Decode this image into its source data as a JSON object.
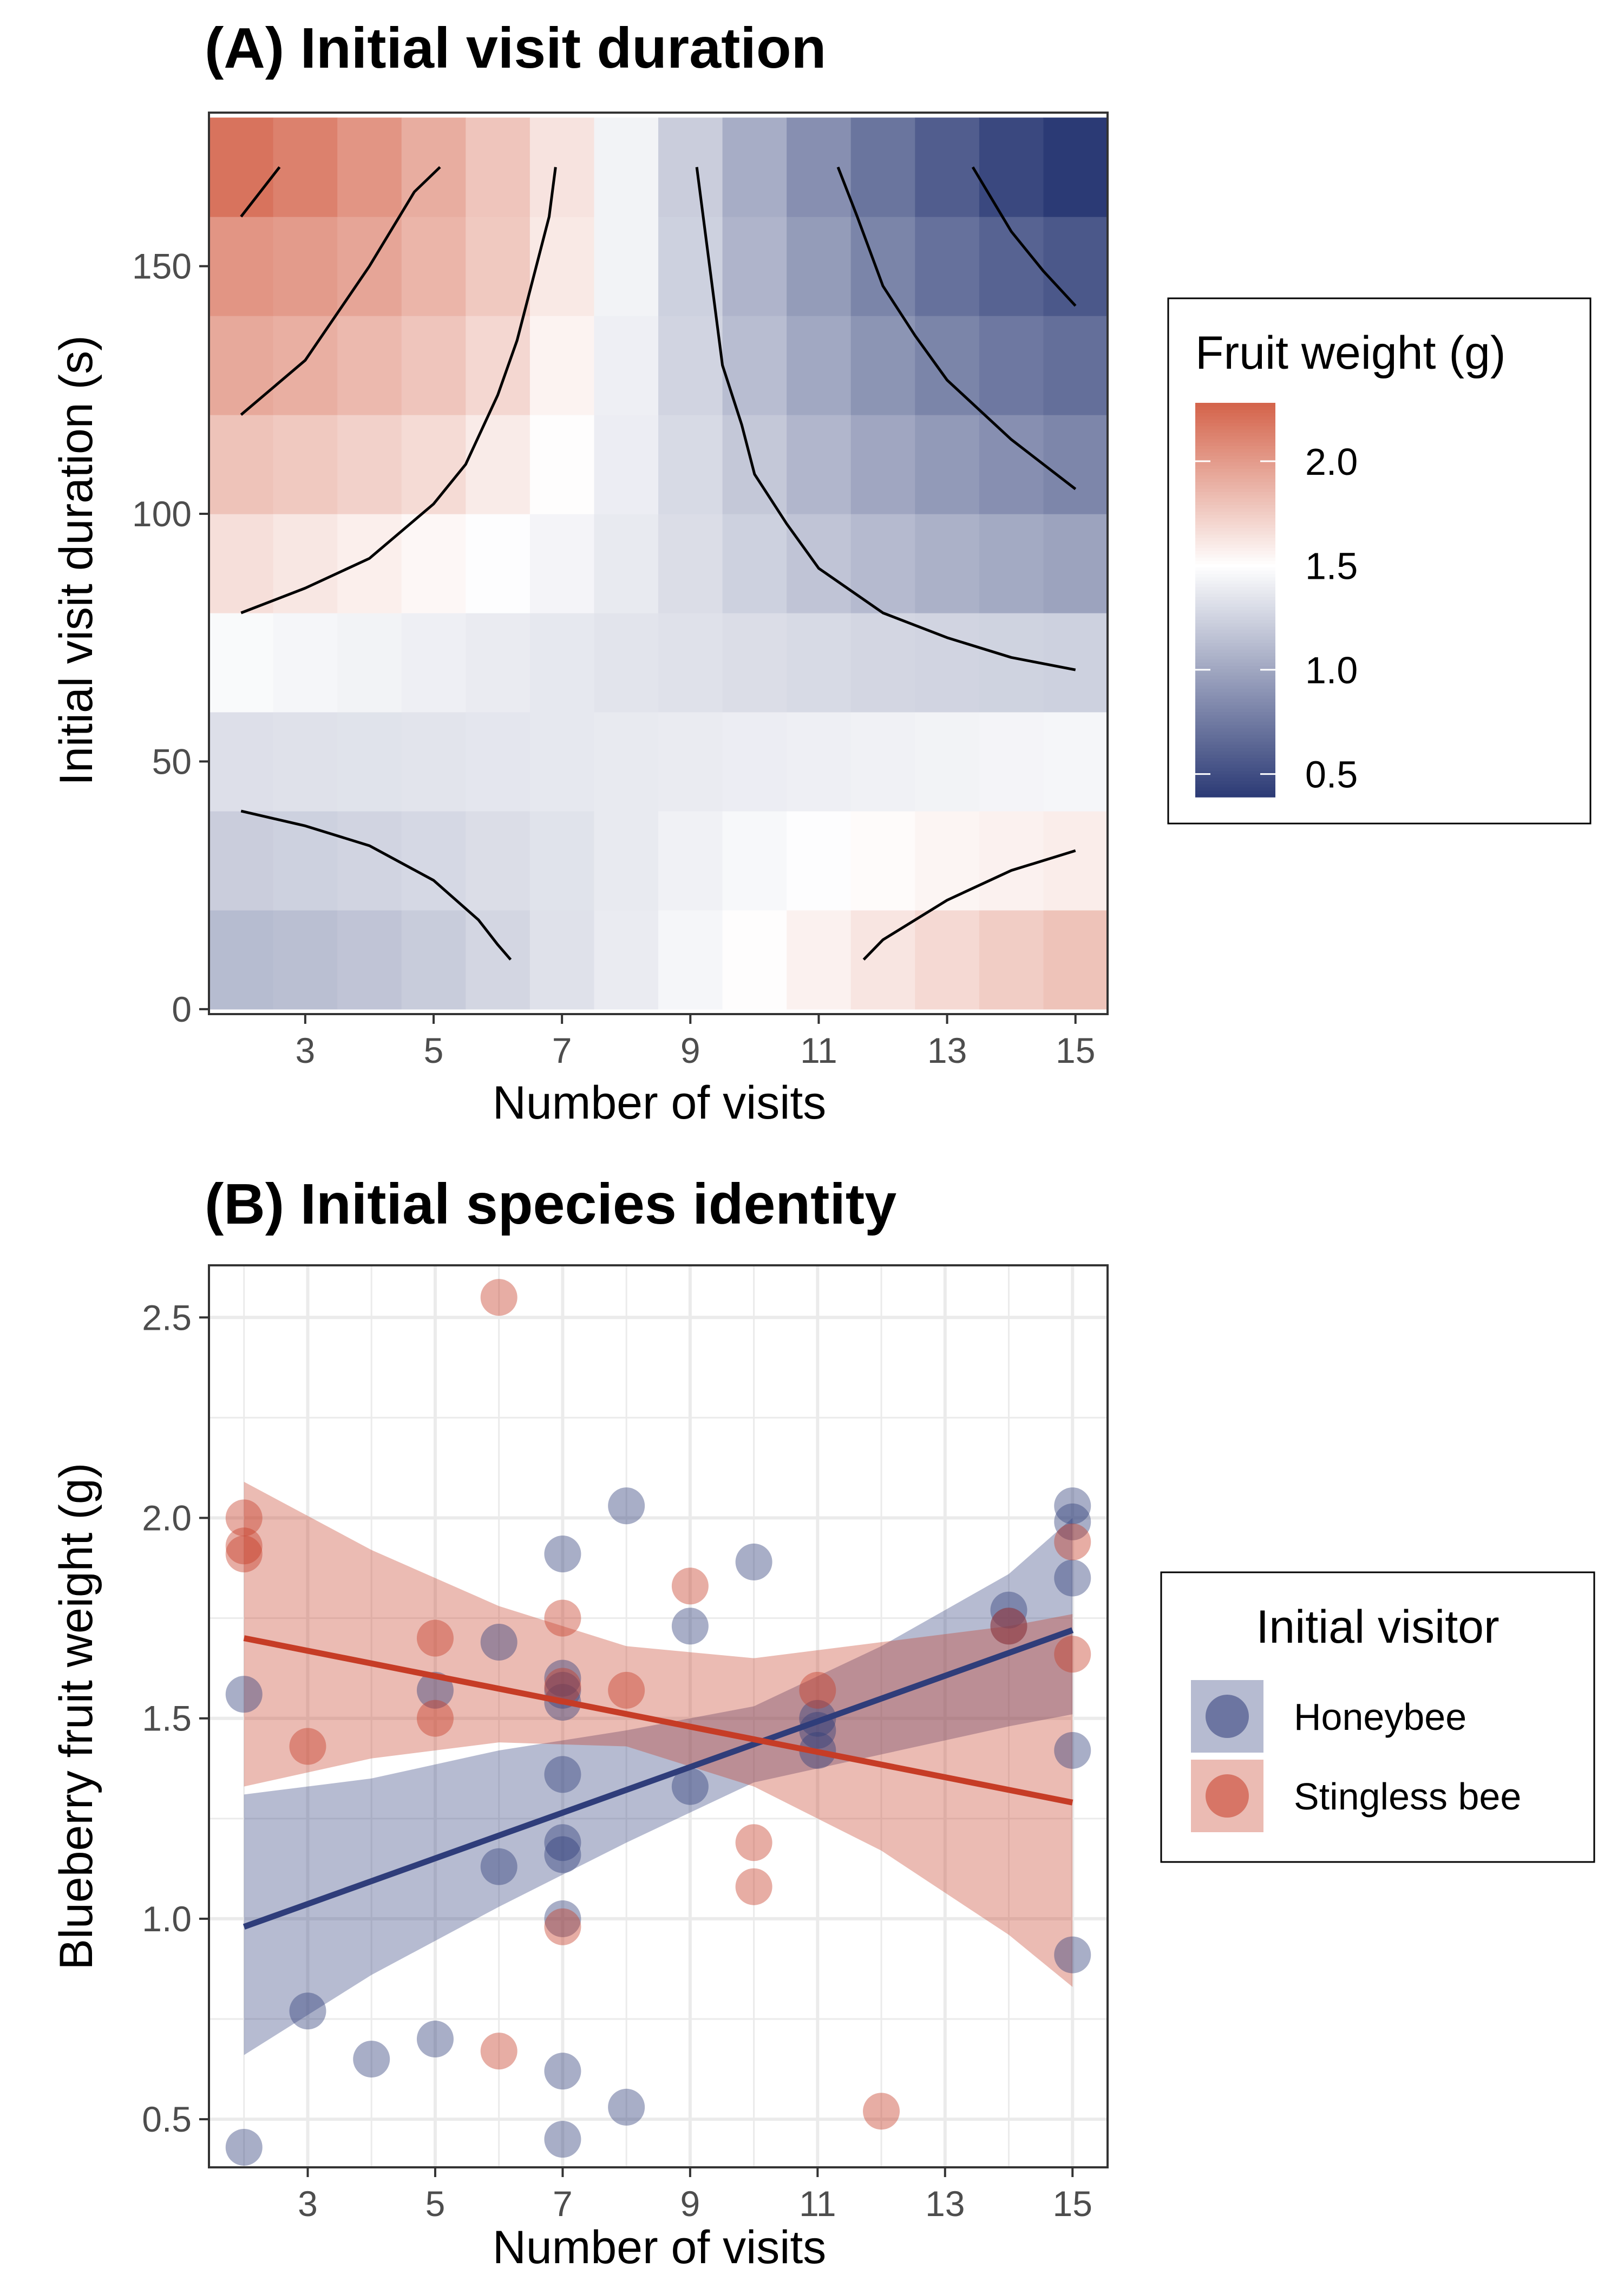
{
  "colors": {
    "low": "#2b3a75",
    "mid": "#ffffff",
    "high": "#d4634a",
    "honeybee": "#2f3d7a",
    "stingless": "#c63c26",
    "grid": "#ebebeb",
    "tick_text": "#4d4d4d"
  },
  "chart_data": [
    {
      "type": "heatmap",
      "title": "(A) Initial visit duration",
      "xlabel": "Number of visits",
      "ylabel": "Initial visit duration (s)",
      "xlim": [
        1.5,
        15.5
      ],
      "ylim": [
        -1,
        181
      ],
      "x_ticks": [
        3,
        5,
        7,
        9,
        11,
        13,
        15
      ],
      "y_ticks": [
        0,
        50,
        100,
        150
      ],
      "x": [
        2,
        3,
        4,
        5,
        6,
        7,
        8,
        9,
        10,
        11,
        12,
        13,
        14,
        15
      ],
      "y": [
        10,
        30,
        50,
        70,
        90,
        110,
        130,
        150,
        170
      ],
      "z": [
        [
          1.12,
          1.14,
          1.17,
          1.21,
          1.27,
          1.33,
          1.39,
          1.45,
          1.51,
          1.57,
          1.63,
          1.69,
          1.75,
          1.8
        ],
        [
          1.22,
          1.24,
          1.26,
          1.28,
          1.31,
          1.34,
          1.38,
          1.42,
          1.46,
          1.49,
          1.52,
          1.55,
          1.57,
          1.59
        ],
        [
          1.32,
          1.33,
          1.34,
          1.35,
          1.36,
          1.37,
          1.38,
          1.39,
          1.4,
          1.41,
          1.42,
          1.43,
          1.44,
          1.45
        ],
        [
          1.47,
          1.45,
          1.43,
          1.41,
          1.39,
          1.37,
          1.35,
          1.33,
          1.31,
          1.29,
          1.27,
          1.26,
          1.25,
          1.24
        ],
        [
          1.66,
          1.62,
          1.58,
          1.54,
          1.49,
          1.44,
          1.38,
          1.31,
          1.24,
          1.17,
          1.11,
          1.06,
          1.02,
          0.98
        ],
        [
          1.8,
          1.77,
          1.73,
          1.68,
          1.6,
          1.51,
          1.4,
          1.29,
          1.19,
          1.09,
          1.0,
          0.93,
          0.87,
          0.82
        ],
        [
          1.93,
          1.9,
          1.85,
          1.79,
          1.7,
          1.56,
          1.41,
          1.26,
          1.13,
          1.01,
          0.9,
          0.81,
          0.74,
          0.69
        ],
        [
          2.03,
          2.0,
          1.95,
          1.87,
          1.77,
          1.61,
          1.43,
          1.24,
          1.08,
          0.94,
          0.81,
          0.7,
          0.62,
          0.56
        ],
        [
          2.2,
          2.13,
          2.03,
          1.91,
          1.79,
          1.64,
          1.43,
          1.22,
          1.04,
          0.87,
          0.72,
          0.59,
          0.47,
          0.39
        ]
      ],
      "legend": {
        "title": "Fruit weight (g)",
        "ticks": [
          0.5,
          1.0,
          1.5,
          2.0
        ],
        "tick_labels": [
          "0.5",
          "1.0",
          "1.5",
          "2.0"
        ],
        "range": [
          0.39,
          2.28
        ],
        "placement": "right"
      },
      "contours": [
        [
          [
            2,
            160
          ],
          [
            2.6,
            170
          ]
        ],
        [
          [
            2,
            120
          ],
          [
            3,
            131
          ],
          [
            4,
            150
          ],
          [
            4.7,
            165
          ],
          [
            5.1,
            170
          ]
        ],
        [
          [
            2,
            80
          ],
          [
            3,
            85
          ],
          [
            4,
            91
          ],
          [
            5,
            102
          ],
          [
            5.5,
            110
          ],
          [
            6,
            124
          ],
          [
            6.3,
            135
          ],
          [
            6.6,
            150
          ],
          [
            6.8,
            160
          ],
          [
            6.9,
            170
          ]
        ],
        [
          [
            9.1,
            170
          ],
          [
            9.2,
            160
          ],
          [
            9.3,
            150
          ],
          [
            9.5,
            130
          ],
          [
            9.8,
            118
          ],
          [
            10,
            108
          ],
          [
            10.5,
            98
          ],
          [
            11,
            89
          ],
          [
            12,
            80
          ],
          [
            13,
            75
          ],
          [
            14,
            71
          ],
          [
            15,
            68.5
          ]
        ],
        [
          [
            11.3,
            170
          ],
          [
            11.6,
            160
          ],
          [
            12,
            146
          ],
          [
            12.5,
            136
          ],
          [
            13,
            127
          ],
          [
            14,
            115
          ],
          [
            15,
            105
          ]
        ],
        [
          [
            13.4,
            170
          ],
          [
            14,
            157
          ],
          [
            14.5,
            149
          ],
          [
            15,
            142
          ]
        ],
        [
          [
            2,
            40
          ],
          [
            3,
            37
          ],
          [
            4,
            33
          ],
          [
            5,
            26
          ],
          [
            5.7,
            18
          ],
          [
            6,
            13
          ],
          [
            6.2,
            10
          ]
        ],
        [
          [
            11.7,
            10
          ],
          [
            12,
            14
          ],
          [
            13,
            22
          ],
          [
            14,
            28
          ],
          [
            15,
            32
          ]
        ]
      ]
    },
    {
      "type": "scatter",
      "title": "(B) Initial species identity",
      "xlabel": "Number of visits",
      "ylabel": "Blueberry fruit weight (g)",
      "xlim": [
        1.45,
        15.55
      ],
      "ylim": [
        0.38,
        2.63
      ],
      "x_ticks": [
        3,
        5,
        7,
        9,
        11,
        13,
        15
      ],
      "y_ticks": [
        0.5,
        1.0,
        1.5,
        2.0,
        2.5
      ],
      "y_tick_labels": [
        "0.5",
        "1.0",
        "1.5",
        "2.0",
        "2.5"
      ],
      "grid": true,
      "legend": {
        "title": "Initial visitor",
        "placement": "right",
        "entries": [
          "Honeybee",
          "Stingless bee"
        ]
      },
      "series": [
        {
          "name": "Honeybee",
          "points": [
            [
              2,
              1.56
            ],
            [
              2,
              0.43
            ],
            [
              3,
              0.77
            ],
            [
              4,
              0.65
            ],
            [
              5,
              1.57
            ],
            [
              5,
              0.7
            ],
            [
              6,
              1.69
            ],
            [
              6,
              1.13
            ],
            [
              7,
              1.91
            ],
            [
              7,
              1.6
            ],
            [
              7,
              1.57
            ],
            [
              7,
              1.54
            ],
            [
              7,
              1.36
            ],
            [
              7,
              1.19
            ],
            [
              7,
              1.16
            ],
            [
              7,
              1.0
            ],
            [
              7,
              0.62
            ],
            [
              7,
              0.45
            ],
            [
              8,
              2.03
            ],
            [
              8,
              0.53
            ],
            [
              9,
              1.73
            ],
            [
              9,
              1.33
            ],
            [
              10,
              1.89
            ],
            [
              11,
              1.5
            ],
            [
              11,
              1.47
            ],
            [
              11,
              1.42
            ],
            [
              14,
              1.77
            ],
            [
              14,
              1.73
            ],
            [
              15,
              2.03
            ],
            [
              15,
              1.99
            ],
            [
              15,
              1.85
            ],
            [
              15,
              1.42
            ],
            [
              15,
              0.91
            ]
          ],
          "fit": [
            [
              2,
              0.98
            ],
            [
              15,
              1.72
            ]
          ],
          "ribbon": [
            [
              2,
              0.66,
              1.31
            ],
            [
              4,
              0.86,
              1.35
            ],
            [
              6,
              1.03,
              1.42
            ],
            [
              8,
              1.19,
              1.47
            ],
            [
              10,
              1.34,
              1.53
            ],
            [
              12,
              1.41,
              1.68
            ],
            [
              14,
              1.48,
              1.86
            ],
            [
              15,
              1.51,
              2.0
            ]
          ]
        },
        {
          "name": "Stingless bee",
          "points": [
            [
              2,
              2.0
            ],
            [
              2,
              1.93
            ],
            [
              2,
              1.91
            ],
            [
              3,
              1.43
            ],
            [
              5,
              1.7
            ],
            [
              5,
              1.5
            ],
            [
              6,
              2.55
            ],
            [
              6,
              0.67
            ],
            [
              7,
              1.75
            ],
            [
              7,
              1.58
            ],
            [
              7,
              0.98
            ],
            [
              8,
              1.57
            ],
            [
              9,
              1.83
            ],
            [
              10,
              1.19
            ],
            [
              10,
              1.08
            ],
            [
              11,
              1.57
            ],
            [
              12,
              0.52
            ],
            [
              14,
              1.73
            ],
            [
              15,
              1.94
            ],
            [
              15,
              1.66
            ]
          ],
          "fit": [
            [
              2,
              1.7
            ],
            [
              15,
              1.29
            ]
          ],
          "ribbon": [
            [
              2,
              1.33,
              2.09
            ],
            [
              4,
              1.4,
              1.92
            ],
            [
              6,
              1.44,
              1.78
            ],
            [
              8,
              1.43,
              1.68
            ],
            [
              10,
              1.33,
              1.65
            ],
            [
              12,
              1.17,
              1.69
            ],
            [
              14,
              0.96,
              1.73
            ],
            [
              15,
              0.83,
              1.76
            ]
          ]
        }
      ]
    }
  ]
}
